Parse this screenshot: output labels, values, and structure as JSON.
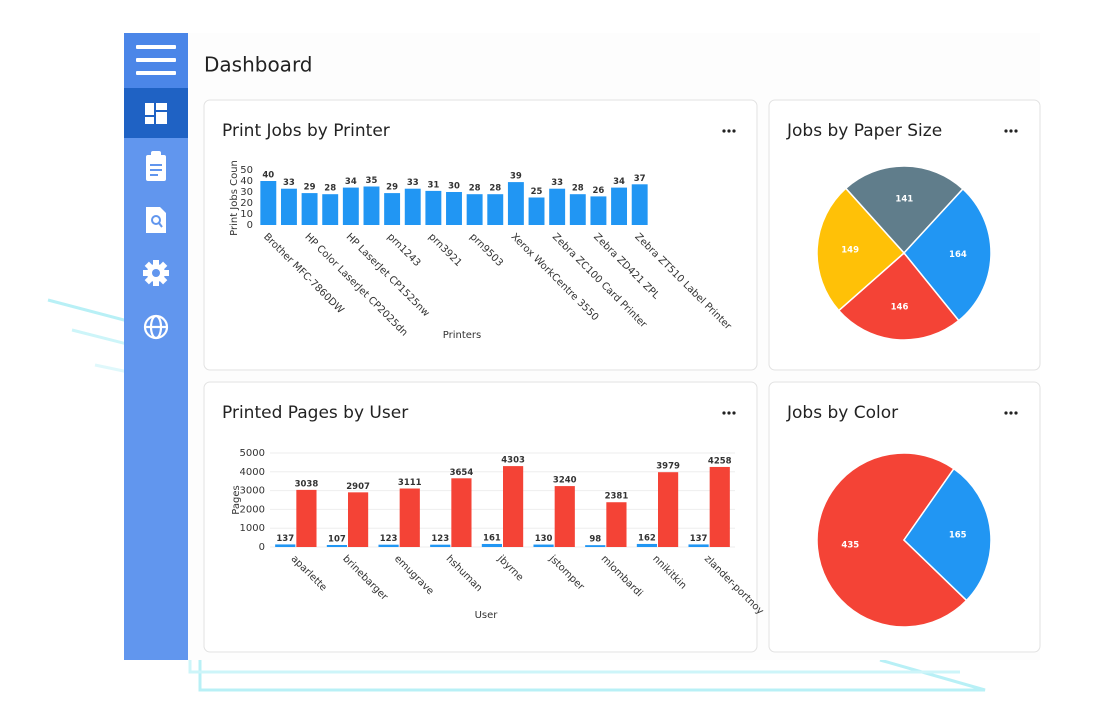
{
  "page": {
    "title": "Dashboard"
  },
  "chart_data": [
    {
      "type": "bar",
      "title": "Print Jobs by Printer",
      "x_label": "Printers",
      "y_label": "Print Jobs Coun",
      "categories": [
        "Brother MFC-7860DW",
        null,
        "HP Color LaserJet CP2025dn",
        null,
        "HP LaserJet CP1525nw",
        null,
        "prn1243",
        null,
        "prn3921",
        null,
        "prn9503",
        null,
        "Xerox WorkCentre 3550",
        null,
        "Zebra ZC100 Card Printer",
        null,
        "Zebra ZD421 ZPL",
        null,
        "Zebra ZT510 Label Printer"
      ],
      "values": [
        40,
        33,
        29,
        28,
        34,
        35,
        29,
        33,
        31,
        30,
        28,
        28,
        39,
        25,
        33,
        28,
        26,
        34,
        37
      ],
      "color": "#2196f3",
      "ylim": [
        0,
        50
      ],
      "yticks": [
        0,
        10,
        20,
        30,
        40,
        50
      ],
      "grid": false
    },
    {
      "type": "pie",
      "title": "Jobs by Paper Size",
      "values": [
        141,
        164,
        146,
        149
      ],
      "colors": [
        "#607d8b",
        "#2196f3",
        "#f44336",
        "#ffc107"
      ]
    },
    {
      "type": "bar",
      "title": "Printed Pages by User",
      "x_label": "User",
      "y_label": "Pages",
      "categories": [
        "aparlette",
        "brinebarger",
        "emugrave",
        "hshuman",
        "jbyrne",
        "jstomper",
        "mlombardi",
        "nnikitkin",
        "zlander-portnoy"
      ],
      "series": [
        {
          "color": "#2196f3",
          "values": [
            137,
            107,
            123,
            123,
            161,
            130,
            98,
            162,
            137
          ]
        },
        {
          "color": "#f44336",
          "values": [
            3038,
            2907,
            3111,
            3654,
            4303,
            3240,
            2381,
            3979,
            4258
          ]
        }
      ],
      "ylim": [
        0,
        5000
      ],
      "yticks": [
        0,
        1000,
        2000,
        3000,
        4000,
        5000
      ],
      "grid": true
    },
    {
      "type": "pie",
      "title": "Jobs by Color",
      "values": [
        435,
        165
      ],
      "colors": [
        "#f44336",
        "#2196f3"
      ]
    }
  ]
}
